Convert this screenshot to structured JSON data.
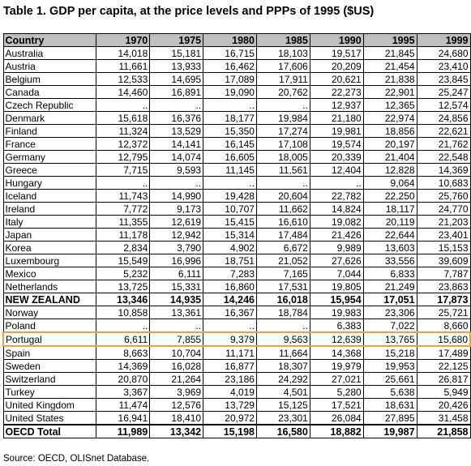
{
  "title": "Table 1.  GDP per capita, at the price levels and PPPs of 1995 ($US)",
  "source": "Source:  OECD, OLISnet Database.",
  "colors": {
    "header_bg": "#bfbfbf",
    "highlight_border": "#e8a040"
  },
  "chart_data": {
    "type": "table",
    "columns": [
      "Country",
      "1970",
      "1975",
      "1980",
      "1985",
      "1990",
      "1995",
      "1999"
    ],
    "rows": [
      [
        "Australia",
        "14,018",
        "15,181",
        "16,715",
        "18,103",
        "19,517",
        "21,845",
        "24,680"
      ],
      [
        "Austria",
        "11,661",
        "13,933",
        "16,462",
        "17,606",
        "20,209",
        "21,454",
        "23,410"
      ],
      [
        "Belgium",
        "12,533",
        "14,695",
        "17,089",
        "17,911",
        "20,621",
        "21,838",
        "23,845"
      ],
      [
        "Canada",
        "14,460",
        "16,891",
        "19,090",
        "20,762",
        "22,273",
        "22,901",
        "25,247"
      ],
      [
        "Czech Republic",
        "..",
        "..",
        "..",
        "..",
        "12,937",
        "12,365",
        "12,574"
      ],
      [
        "Denmark",
        "15,618",
        "16,376",
        "18,177",
        "19,984",
        "21,180",
        "22,974",
        "24,856"
      ],
      [
        "Finland",
        "11,324",
        "13,529",
        "15,350",
        "17,274",
        "19,981",
        "18,856",
        "22,621"
      ],
      [
        "France",
        "12,372",
        "14,141",
        "16,145",
        "17,108",
        "19,574",
        "20,197",
        "21,762"
      ],
      [
        "Germany",
        "12,795",
        "14,074",
        "16,605",
        "18,005",
        "20,339",
        "21,404",
        "22,548"
      ],
      [
        "Greece",
        "7,715",
        "9,593",
        "11,145",
        "11,561",
        "12,404",
        "12,828",
        "14,369"
      ],
      [
        "Hungary",
        "..",
        "..",
        "..",
        "..",
        "..",
        "9,064",
        "10,683"
      ],
      [
        "Iceland",
        "11,743",
        "14,990",
        "19,428",
        "20,604",
        "22,782",
        "22,250",
        "25,760"
      ],
      [
        "Ireland",
        "7,772",
        "9,173",
        "10,707",
        "11,662",
        "14,824",
        "18,117",
        "24,770"
      ],
      [
        "Italy",
        "11,355",
        "12,619",
        "15,415",
        "16,610",
        "19,082",
        "20,119",
        "21,203"
      ],
      [
        "Japan",
        "11,178",
        "12,942",
        "15,314",
        "17,484",
        "21,426",
        "22,644",
        "23,401"
      ],
      [
        "Korea",
        "2,834",
        "3,790",
        "4,902",
        "6,672",
        "9,989",
        "13,603",
        "15,153"
      ],
      [
        "Luxembourg",
        "15,549",
        "16,996",
        "18,751",
        "21,052",
        "27,626",
        "33,556",
        "39,609"
      ],
      [
        "Mexico",
        "5,232",
        "6,111",
        "7,283",
        "7,165",
        "7,044",
        "6,833",
        "7,787"
      ],
      [
        "Netherlands",
        "13,725",
        "15,331",
        "16,860",
        "17,531",
        "19,805",
        "21,249",
        "23,863"
      ],
      [
        "NEW ZEALAND",
        "13,346",
        "14,935",
        "14,246",
        "16,018",
        "15,954",
        "17,051",
        "17,873"
      ],
      [
        "Norway",
        "10,858",
        "13,361",
        "16,367",
        "18,784",
        "19,983",
        "23,306",
        "25,721"
      ],
      [
        "Poland",
        "..",
        "..",
        "..",
        "..",
        "6,383",
        "7,022",
        "8,660"
      ],
      [
        "Portugal",
        "6,611",
        "7,855",
        "9,379",
        "9,563",
        "12,639",
        "13,765",
        "15,680"
      ],
      [
        "Spain",
        "8,663",
        "10,704",
        "11,171",
        "11,664",
        "14,368",
        "15,218",
        "17,489"
      ],
      [
        "Sweden",
        "14,369",
        "16,028",
        "16,877",
        "18,307",
        "19,979",
        "19,953",
        "22,125"
      ],
      [
        "Switzerland",
        "20,870",
        "21,264",
        "23,186",
        "24,292",
        "27,021",
        "25,661",
        "26,817"
      ],
      [
        "Turkey",
        "3,367",
        "3,969",
        "4,019",
        "4,501",
        "5,280",
        "5,638",
        "5,949"
      ],
      [
        "United Kingdom",
        "11,474",
        "12,576",
        "13,729",
        "15,125",
        "17,521",
        "18,631",
        "20,426"
      ],
      [
        "United States",
        "16,941",
        "18,410",
        "20,972",
        "23,301",
        "26,084",
        "27,895",
        "31,458"
      ],
      [
        "OECD Total",
        "11,989",
        "13,342",
        "15,198",
        "16,580",
        "18,882",
        "19,987",
        "21,858"
      ]
    ],
    "bold_rows": [
      "NEW ZEALAND",
      "OECD Total"
    ],
    "highlighted_row": "Portugal"
  }
}
